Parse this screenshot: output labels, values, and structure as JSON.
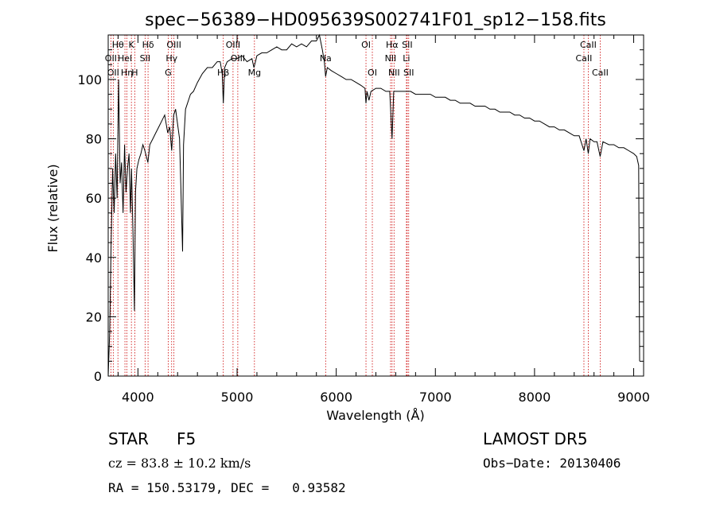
{
  "chart_data": {
    "type": "line",
    "title": "spec−56389−HD095639S002741F01_sp12−158.fits",
    "xlabel": "Wavelength (Å)",
    "ylabel": "Flux (relative)",
    "xlim": [
      3700,
      9100
    ],
    "ylim": [
      0,
      115
    ],
    "xticks": [
      4000,
      5000,
      6000,
      7000,
      8000,
      9000
    ],
    "yticks": [
      0,
      20,
      40,
      60,
      80,
      100
    ],
    "grid": false,
    "series": [
      {
        "values": [
          [
            3700,
            0
          ],
          [
            3715,
            15
          ],
          [
            3730,
            45
          ],
          [
            3745,
            70
          ],
          [
            3760,
            55
          ],
          [
            3775,
            75
          ],
          [
            3790,
            60
          ],
          [
            3805,
            100
          ],
          [
            3820,
            65
          ],
          [
            3835,
            72
          ],
          [
            3850,
            55
          ],
          [
            3865,
            78
          ],
          [
            3880,
            62
          ],
          [
            3895,
            70
          ],
          [
            3910,
            75
          ],
          [
            3925,
            55
          ],
          [
            3935,
            70
          ],
          [
            3950,
            48
          ],
          [
            3965,
            22
          ],
          [
            3975,
            62
          ],
          [
            3990,
            70
          ],
          [
            4010,
            73
          ],
          [
            4030,
            75
          ],
          [
            4050,
            78
          ],
          [
            4070,
            76
          ],
          [
            4100,
            72
          ],
          [
            4120,
            78
          ],
          [
            4150,
            80
          ],
          [
            4180,
            82
          ],
          [
            4210,
            84
          ],
          [
            4240,
            86
          ],
          [
            4270,
            88
          ],
          [
            4300,
            82
          ],
          [
            4320,
            84
          ],
          [
            4340,
            76
          ],
          [
            4360,
            88
          ],
          [
            4380,
            90
          ],
          [
            4400,
            85
          ],
          [
            4420,
            80
          ],
          [
            4440,
            55
          ],
          [
            4450,
            42
          ],
          [
            4460,
            78
          ],
          [
            4480,
            90
          ],
          [
            4500,
            92
          ],
          [
            4530,
            95
          ],
          [
            4560,
            96
          ],
          [
            4600,
            99
          ],
          [
            4650,
            102
          ],
          [
            4700,
            104
          ],
          [
            4750,
            104
          ],
          [
            4800,
            106
          ],
          [
            4830,
            106
          ],
          [
            4850,
            102
          ],
          [
            4861,
            92
          ],
          [
            4875,
            104
          ],
          [
            4900,
            106
          ],
          [
            4950,
            107
          ],
          [
            5000,
            107
          ],
          [
            5050,
            108
          ],
          [
            5100,
            106
          ],
          [
            5150,
            107
          ],
          [
            5170,
            104
          ],
          [
            5185,
            106
          ],
          [
            5200,
            108
          ],
          [
            5250,
            109
          ],
          [
            5300,
            109
          ],
          [
            5350,
            110
          ],
          [
            5400,
            111
          ],
          [
            5450,
            110
          ],
          [
            5500,
            110
          ],
          [
            5550,
            112
          ],
          [
            5600,
            111
          ],
          [
            5650,
            112
          ],
          [
            5700,
            111
          ],
          [
            5750,
            113
          ],
          [
            5800,
            113
          ],
          [
            5830,
            115
          ],
          [
            5860,
            110
          ],
          [
            5880,
            106
          ],
          [
            5893,
            101
          ],
          [
            5910,
            104
          ],
          [
            5950,
            103
          ],
          [
            6000,
            102
          ],
          [
            6050,
            101
          ],
          [
            6100,
            100
          ],
          [
            6150,
            100
          ],
          [
            6200,
            99
          ],
          [
            6250,
            98
          ],
          [
            6290,
            97
          ],
          [
            6300,
            92
          ],
          [
            6310,
            96
          ],
          [
            6330,
            93
          ],
          [
            6350,
            96
          ],
          [
            6400,
            97
          ],
          [
            6450,
            97
          ],
          [
            6500,
            96
          ],
          [
            6540,
            96
          ],
          [
            6563,
            80
          ],
          [
            6580,
            96
          ],
          [
            6620,
            96
          ],
          [
            6650,
            96
          ],
          [
            6700,
            96
          ],
          [
            6750,
            96
          ],
          [
            6800,
            95
          ],
          [
            6850,
            95
          ],
          [
            6900,
            95
          ],
          [
            6950,
            95
          ],
          [
            7000,
            94
          ],
          [
            7050,
            94
          ],
          [
            7100,
            94
          ],
          [
            7150,
            93
          ],
          [
            7200,
            93
          ],
          [
            7250,
            92
          ],
          [
            7300,
            92
          ],
          [
            7350,
            92
          ],
          [
            7400,
            91
          ],
          [
            7450,
            91
          ],
          [
            7500,
            91
          ],
          [
            7550,
            90
          ],
          [
            7600,
            90
          ],
          [
            7650,
            89
          ],
          [
            7700,
            89
          ],
          [
            7750,
            89
          ],
          [
            7800,
            88
          ],
          [
            7850,
            88
          ],
          [
            7900,
            87
          ],
          [
            7950,
            87
          ],
          [
            8000,
            86
          ],
          [
            8050,
            86
          ],
          [
            8100,
            85
          ],
          [
            8150,
            84
          ],
          [
            8200,
            84
          ],
          [
            8250,
            83
          ],
          [
            8300,
            83
          ],
          [
            8350,
            82
          ],
          [
            8400,
            81
          ],
          [
            8450,
            81
          ],
          [
            8498,
            76
          ],
          [
            8520,
            80
          ],
          [
            8542,
            75
          ],
          [
            8560,
            80
          ],
          [
            8600,
            79
          ],
          [
            8630,
            79
          ],
          [
            8662,
            74
          ],
          [
            8690,
            79
          ],
          [
            8750,
            78
          ],
          [
            8800,
            78
          ],
          [
            8850,
            77
          ],
          [
            8900,
            77
          ],
          [
            8950,
            76
          ],
          [
            9000,
            75
          ],
          [
            9030,
            74
          ],
          [
            9050,
            71
          ],
          [
            9060,
            5
          ]
        ]
      }
    ],
    "line_markers": [
      {
        "wl": 3727,
        "text": "OII",
        "row": 2
      },
      {
        "wl": 3751,
        "text": "OII",
        "row": 3
      },
      {
        "wl": 3798,
        "text": "Hθ",
        "row": 1
      },
      {
        "wl": 3869,
        "text": "Hel",
        "row": 2
      },
      {
        "wl": 3889,
        "text": "Hη",
        "row": 3
      },
      {
        "wl": 3934,
        "text": "K",
        "row": 1
      },
      {
        "wl": 3968,
        "text": "H",
        "row": 3
      },
      {
        "wl": 4102,
        "text": "Hδ",
        "row": 1
      },
      {
        "wl": 4072,
        "text": "SII",
        "row": 2
      },
      {
        "wl": 4340,
        "text": "Hγ",
        "row": 2
      },
      {
        "wl": 4363,
        "text": "OIII",
        "row": 1
      },
      {
        "wl": 4305,
        "text": "G",
        "row": 3
      },
      {
        "wl": 4861,
        "text": "Hβ",
        "row": 3
      },
      {
        "wl": 4959,
        "text": "OIII",
        "row": 1
      },
      {
        "wl": 5007,
        "text": "OIII",
        "row": 2
      },
      {
        "wl": 5175,
        "text": "Mg",
        "row": 3
      },
      {
        "wl": 5893,
        "text": "Na",
        "row": 2
      },
      {
        "wl": 6300,
        "text": "OI",
        "row": 1
      },
      {
        "wl": 6364,
        "text": "OI",
        "row": 3
      },
      {
        "wl": 6563,
        "text": "Hα",
        "row": 1
      },
      {
        "wl": 6548,
        "text": "NII",
        "row": 2
      },
      {
        "wl": 6583,
        "text": "NII",
        "row": 3
      },
      {
        "wl": 6716,
        "text": "SII",
        "row": 1
      },
      {
        "wl": 6708,
        "text": "Li",
        "row": 2
      },
      {
        "wl": 6731,
        "text": "SII",
        "row": 3
      },
      {
        "wl": 8498,
        "text": "CaII",
        "row": 2
      },
      {
        "wl": 8542,
        "text": "CaII",
        "row": 1
      },
      {
        "wl": 8662,
        "text": "CaII",
        "row": 3
      }
    ],
    "colors": {
      "spectrum": "#000000",
      "lines": "#cc0000",
      "axes": "#000000"
    }
  },
  "info": {
    "class_label": "STAR",
    "subclass": "F5",
    "survey": "LAMOST DR5",
    "redshift": "cz = 83.8 ± 10.2 km/s",
    "obs_date": "Obs−Date: 20130406",
    "coords": "RA = 150.53179, DEC =   0.93582"
  }
}
